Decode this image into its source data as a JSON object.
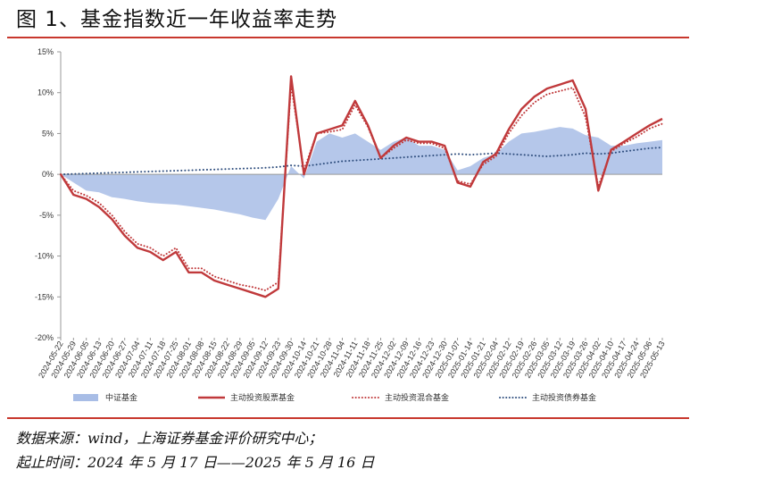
{
  "title": "图 1、基金指数近一年收益率走势",
  "notes": {
    "source": "数据来源：wind，上海证券基金评价研究中心；",
    "period": "起止时间：2024 年 5 月 17 日——2025 年 5 月 16 日"
  },
  "colors": {
    "area": "#a8bde6",
    "stock": "#c0393b",
    "mixed": "#c0393b",
    "bond": "#2f4e7e",
    "rule": "#c8372d"
  },
  "chart_data": {
    "type": "line",
    "ylim": [
      -20,
      15
    ],
    "yticks": [
      15,
      10,
      5,
      0,
      -5,
      -10,
      -15,
      -20
    ],
    "ytick_labels": [
      "15%",
      "10%",
      "5%",
      "0%",
      "-5%",
      "-10%",
      "-15%",
      "-20%"
    ],
    "x_tick_labels": [
      "2024-05-22",
      "2024-05-29",
      "2024-06-05",
      "2024-06-13",
      "2024-06-20",
      "2024-06-27",
      "2024-07-04",
      "2024-07-11",
      "2024-07-18",
      "2024-07-25",
      "2024-08-01",
      "2024-08-08",
      "2024-08-15",
      "2024-08-22",
      "2024-08-29",
      "2024-09-05",
      "2024-09-12",
      "2024-09-23",
      "2024-09-30",
      "2024-10-14",
      "2024-10-21",
      "2024-10-28",
      "2024-11-04",
      "2024-11-11",
      "2024-11-18",
      "2024-11-25",
      "2024-12-02",
      "2024-12-09",
      "2024-12-16",
      "2024-12-23",
      "2024-12-30",
      "2025-01-07",
      "2025-01-14",
      "2025-01-21",
      "2025-02-04",
      "2025-02-12",
      "2025-02-19",
      "2025-02-26",
      "2025-03-05",
      "2025-03-12",
      "2025-03-19",
      "2025-03-26",
      "2025-04-02",
      "2025-04-10",
      "2025-04-17",
      "2025-04-24",
      "2025-05-06",
      "2025-05-13"
    ],
    "legend_position": "bottom",
    "series": [
      {
        "name": "中证基金",
        "style": "area",
        "values": [
          0,
          -1,
          -2,
          -2.2,
          -2.8,
          -3,
          -3.3,
          -3.5,
          -3.6,
          -3.7,
          -3.9,
          -4.1,
          -4.3,
          -4.6,
          -4.9,
          -5.3,
          -5.6,
          -3,
          1,
          -0.5,
          4,
          5,
          4.5,
          5,
          4,
          3,
          4,
          4.5,
          3.5,
          3.5,
          3,
          0.5,
          1,
          2,
          2.5,
          4,
          5,
          5.2,
          5.5,
          5.8,
          5.6,
          4.8,
          4.5,
          3.5,
          3.5,
          3.8,
          4,
          4.2
        ]
      },
      {
        "name": "主动投资股票基金",
        "style": "solid",
        "values": [
          0,
          -2.5,
          -3,
          -4,
          -5.5,
          -7.5,
          -9,
          -9.5,
          -10.5,
          -9.5,
          -12,
          -12,
          -13,
          -13.5,
          -14,
          -14.5,
          -15,
          -14,
          12,
          0,
          5,
          5.5,
          6,
          9,
          6,
          2,
          3.5,
          4.5,
          4,
          4,
          3.5,
          -1,
          -1.5,
          1.5,
          2.5,
          5.5,
          8,
          9.5,
          10.5,
          11,
          11.5,
          8,
          -2,
          3,
          4,
          5,
          6,
          6.8
        ]
      },
      {
        "name": "主动投资混合基金",
        "style": "dotted",
        "values": [
          0,
          -2,
          -2.6,
          -3.5,
          -5,
          -7,
          -8.5,
          -9,
          -10,
          -9,
          -11.5,
          -11.5,
          -12.5,
          -13,
          -13.5,
          -13.8,
          -14.2,
          -13.2,
          11,
          0.5,
          5,
          5.2,
          5.5,
          8.5,
          5.8,
          2,
          3.2,
          4.2,
          3.8,
          3.8,
          3.2,
          -0.8,
          -1.2,
          1.2,
          2.2,
          5,
          7.2,
          8.8,
          9.8,
          10.2,
          10.6,
          7,
          -1.5,
          2.8,
          3.8,
          4.6,
          5.6,
          6.2
        ]
      },
      {
        "name": "主动投资债券基金",
        "style": "dotted",
        "values": [
          0,
          0.05,
          0.1,
          0.15,
          0.2,
          0.25,
          0.3,
          0.35,
          0.4,
          0.45,
          0.5,
          0.55,
          0.6,
          0.65,
          0.7,
          0.75,
          0.8,
          0.9,
          1.1,
          1,
          1.2,
          1.4,
          1.6,
          1.7,
          1.8,
          1.9,
          2,
          2.1,
          2.2,
          2.3,
          2.4,
          2.5,
          2.4,
          2.5,
          2.6,
          2.5,
          2.4,
          2.3,
          2.2,
          2.3,
          2.4,
          2.6,
          2.5,
          2.6,
          2.8,
          3,
          3.2,
          3.3
        ]
      }
    ]
  }
}
